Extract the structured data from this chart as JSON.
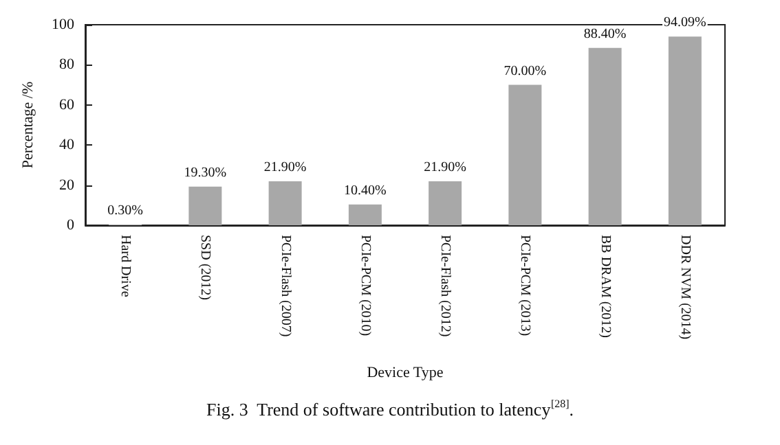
{
  "chart_data": {
    "type": "bar",
    "xlabel": "Device Type",
    "ylabel": "Percentage /%",
    "categories": [
      "Hard Drive",
      "SSD (2012)",
      "PCIe-Flash (2007)",
      "PCIe-PCM (2010)",
      "PCIe-Flash (2012)",
      "PCIe-PCM (2013)",
      "BB DRAM (2012)",
      "DDR NVM (2014)"
    ],
    "values": [
      0.3,
      19.3,
      21.9,
      10.4,
      21.9,
      70.0,
      88.4,
      94.09
    ],
    "value_labels": [
      "0.30%",
      "19.30%",
      "21.90%",
      "10.40%",
      "21.90%",
      "70.00%",
      "88.40%",
      "94.09%"
    ],
    "color": "#a8a8a8",
    "ylim": [
      0,
      100
    ],
    "yticks": [
      0,
      20,
      40,
      60,
      80,
      100
    ],
    "grid": false,
    "annotations": [
      "Fig. 3  Trend of software contribution to latency$^{[28]}$."
    ]
  }
}
